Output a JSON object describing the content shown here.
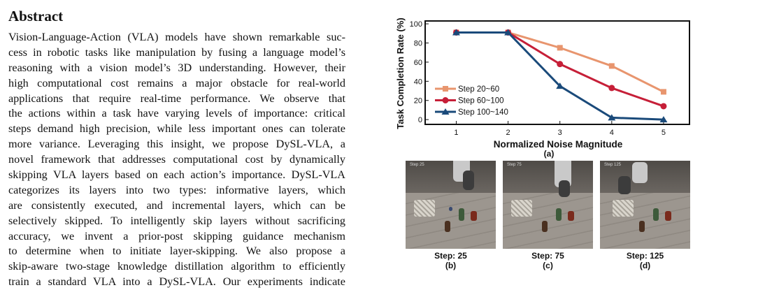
{
  "abstract": {
    "heading": "Abstract",
    "lines": [
      "Vision-Language-Action (VLA) models have shown remarkable suc-",
      "cess in robotic tasks like manipulation by fusing a language model’s",
      "reasoning with a vision model’s 3D understanding. However, their",
      "high computational cost remains a major obstacle for real-world",
      "applications that require real-time performance. We observe that",
      "the actions within a task have varying levels of importance: critical",
      "steps demand high precision, while less important ones can tolerate",
      "more variance. Leveraging this insight, we propose DySL-VLA, a",
      "novel framework that addresses computational cost by dynamically",
      "skipping VLA layers based on each action’s importance. DySL-VLA",
      "categorizes its layers into two types: informative layers, which",
      "are consistently executed, and incremental layers, which can be",
      "selectively skipped. To intelligently skip layers without sacrificing",
      "accuracy, we invent a prior-post skipping guidance mechanism",
      "to determine when to initiate layer-skipping. We also propose a",
      "skip-aware two-stage knowledge distillation algorithm to efficiently",
      "train a standard VLA into a DySL-VLA. Our experiments indicate"
    ]
  },
  "chart_data": {
    "type": "line",
    "xlabel": "Normalized Noise Magnitude",
    "ylabel": "Task Completion Rate (%)",
    "x": [
      1,
      2,
      3,
      4,
      5
    ],
    "xlim": [
      0.4,
      5.5
    ],
    "ylim": [
      -5,
      103
    ],
    "yticks": [
      0,
      20,
      40,
      60,
      80,
      100
    ],
    "legend_position": "lower-left",
    "caption": "(a)",
    "series": [
      {
        "name": "Step 20~60",
        "values": [
          91,
          91,
          75,
          56,
          29
        ],
        "color": "#e8956e",
        "marker": "square"
      },
      {
        "name": "Step 60~100",
        "values": [
          91,
          91,
          58,
          33,
          14
        ],
        "color": "#c61f38",
        "marker": "circle"
      },
      {
        "name": "Step 100~140",
        "values": [
          91,
          91,
          35,
          2,
          0
        ],
        "color": "#1a4a7a",
        "marker": "triangle"
      }
    ]
  },
  "panels": [
    {
      "overlay": "Step 25",
      "step_label": "Step: 25",
      "tag": "(b)"
    },
    {
      "overlay": "Step 75",
      "step_label": "Step: 75",
      "tag": "(c)"
    },
    {
      "overlay": "Step 125",
      "step_label": "Step: 125",
      "tag": "(d)"
    }
  ]
}
